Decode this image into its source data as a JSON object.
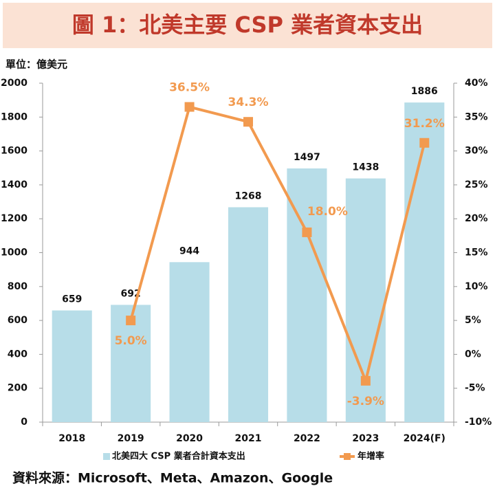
{
  "chart_data": {
    "type": "combo",
    "title": "圖 1：北美主要 CSP 業者資本支出",
    "unit_label": "單位：億美元",
    "source": "資料來源：Microsoft、Meta、Amazon、Google",
    "categories": [
      "2018",
      "2019",
      "2020",
      "2021",
      "2022",
      "2023",
      "2024(F)"
    ],
    "series": [
      {
        "name": "北美四大 CSP 業者合計資本支出",
        "type": "bar",
        "color": "#b7dde8",
        "axis": "y",
        "values": [
          659,
          692,
          944,
          1268,
          1497,
          1438,
          1886
        ]
      },
      {
        "name": "年增率",
        "type": "line",
        "color": "#f29a4f",
        "axis": "y2",
        "values": [
          null,
          5.0,
          36.5,
          34.3,
          18.0,
          -3.9,
          31.2
        ],
        "value_labels": [
          null,
          "5.0%",
          "36.5%",
          "34.3%",
          "18.0%",
          "-3.9%",
          "31.2%"
        ]
      }
    ],
    "ylim": [
      0,
      2000
    ],
    "yticks": [
      0,
      200,
      400,
      600,
      800,
      1000,
      1200,
      1400,
      1600,
      1800,
      2000
    ],
    "y2lim": [
      -10,
      40
    ],
    "y2ticks": [
      {
        "value": -10,
        "label": "-10%"
      },
      {
        "value": -5,
        "label": "-5%"
      },
      {
        "value": 0,
        "label": "0%"
      },
      {
        "value": 5,
        "label": "5%"
      },
      {
        "value": 10,
        "label": "10%"
      },
      {
        "value": 15,
        "label": "15%"
      },
      {
        "value": 20,
        "label": "20%"
      },
      {
        "value": 25,
        "label": "25%"
      },
      {
        "value": 30,
        "label": "30%"
      },
      {
        "value": 35,
        "label": "35%"
      },
      {
        "value": 40,
        "label": "40%"
      }
    ],
    "grid": false
  }
}
